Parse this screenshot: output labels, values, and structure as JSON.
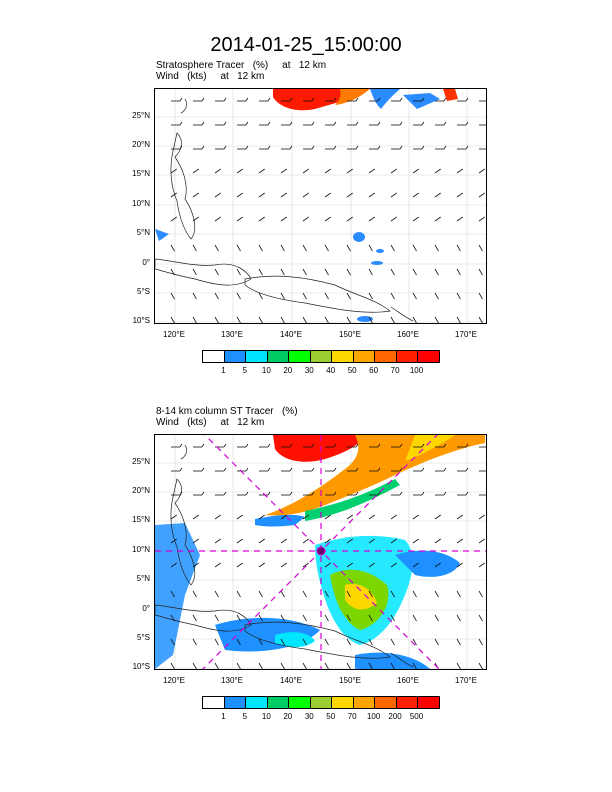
{
  "title": "2014-01-25_15:00:00",
  "panels": [
    {
      "line1": "Stratosphere Tracer   (%)     at   12 km",
      "line2": "Wind   (kts)     at   12 km",
      "lat_labels": [
        "25°N",
        "20°N",
        "15°N",
        "10°N",
        "5°N",
        "0°",
        "5°S",
        "10°S"
      ],
      "lon_labels": [
        "120°E",
        "130°E",
        "140°E",
        "150°E",
        "160°E",
        "170°E"
      ],
      "colorbar_labels": [
        "1",
        "5",
        "10",
        "20",
        "30",
        "40",
        "50",
        "60",
        "70",
        "100"
      ],
      "colorbar_colors": [
        "#ffffff",
        "#1e90ff",
        "#00e5ff",
        "#00cc66",
        "#00ff00",
        "#9acd32",
        "#ffd700",
        "#ffa500",
        "#ff6600",
        "#ff2000",
        "#ff0000"
      ]
    },
    {
      "line1": "8-14 km column ST Tracer   (%)",
      "line2": "Wind   (kts)     at   12 km",
      "lat_labels": [
        "25°N",
        "20°N",
        "15°N",
        "10°N",
        "5°N",
        "0°",
        "5°S",
        "10°S"
      ],
      "lon_labels": [
        "120°E",
        "130°E",
        "140°E",
        "150°E",
        "160°E",
        "170°E"
      ],
      "colorbar_labels": [
        "1",
        "5",
        "10",
        "20",
        "30",
        "50",
        "70",
        "100",
        "200",
        "500"
      ],
      "colorbar_colors": [
        "#ffffff",
        "#1e90ff",
        "#00e5ff",
        "#00cc66",
        "#00ff00",
        "#9acd32",
        "#ffd700",
        "#ffa500",
        "#ff6600",
        "#ff2000",
        "#ff0000"
      ]
    }
  ]
}
